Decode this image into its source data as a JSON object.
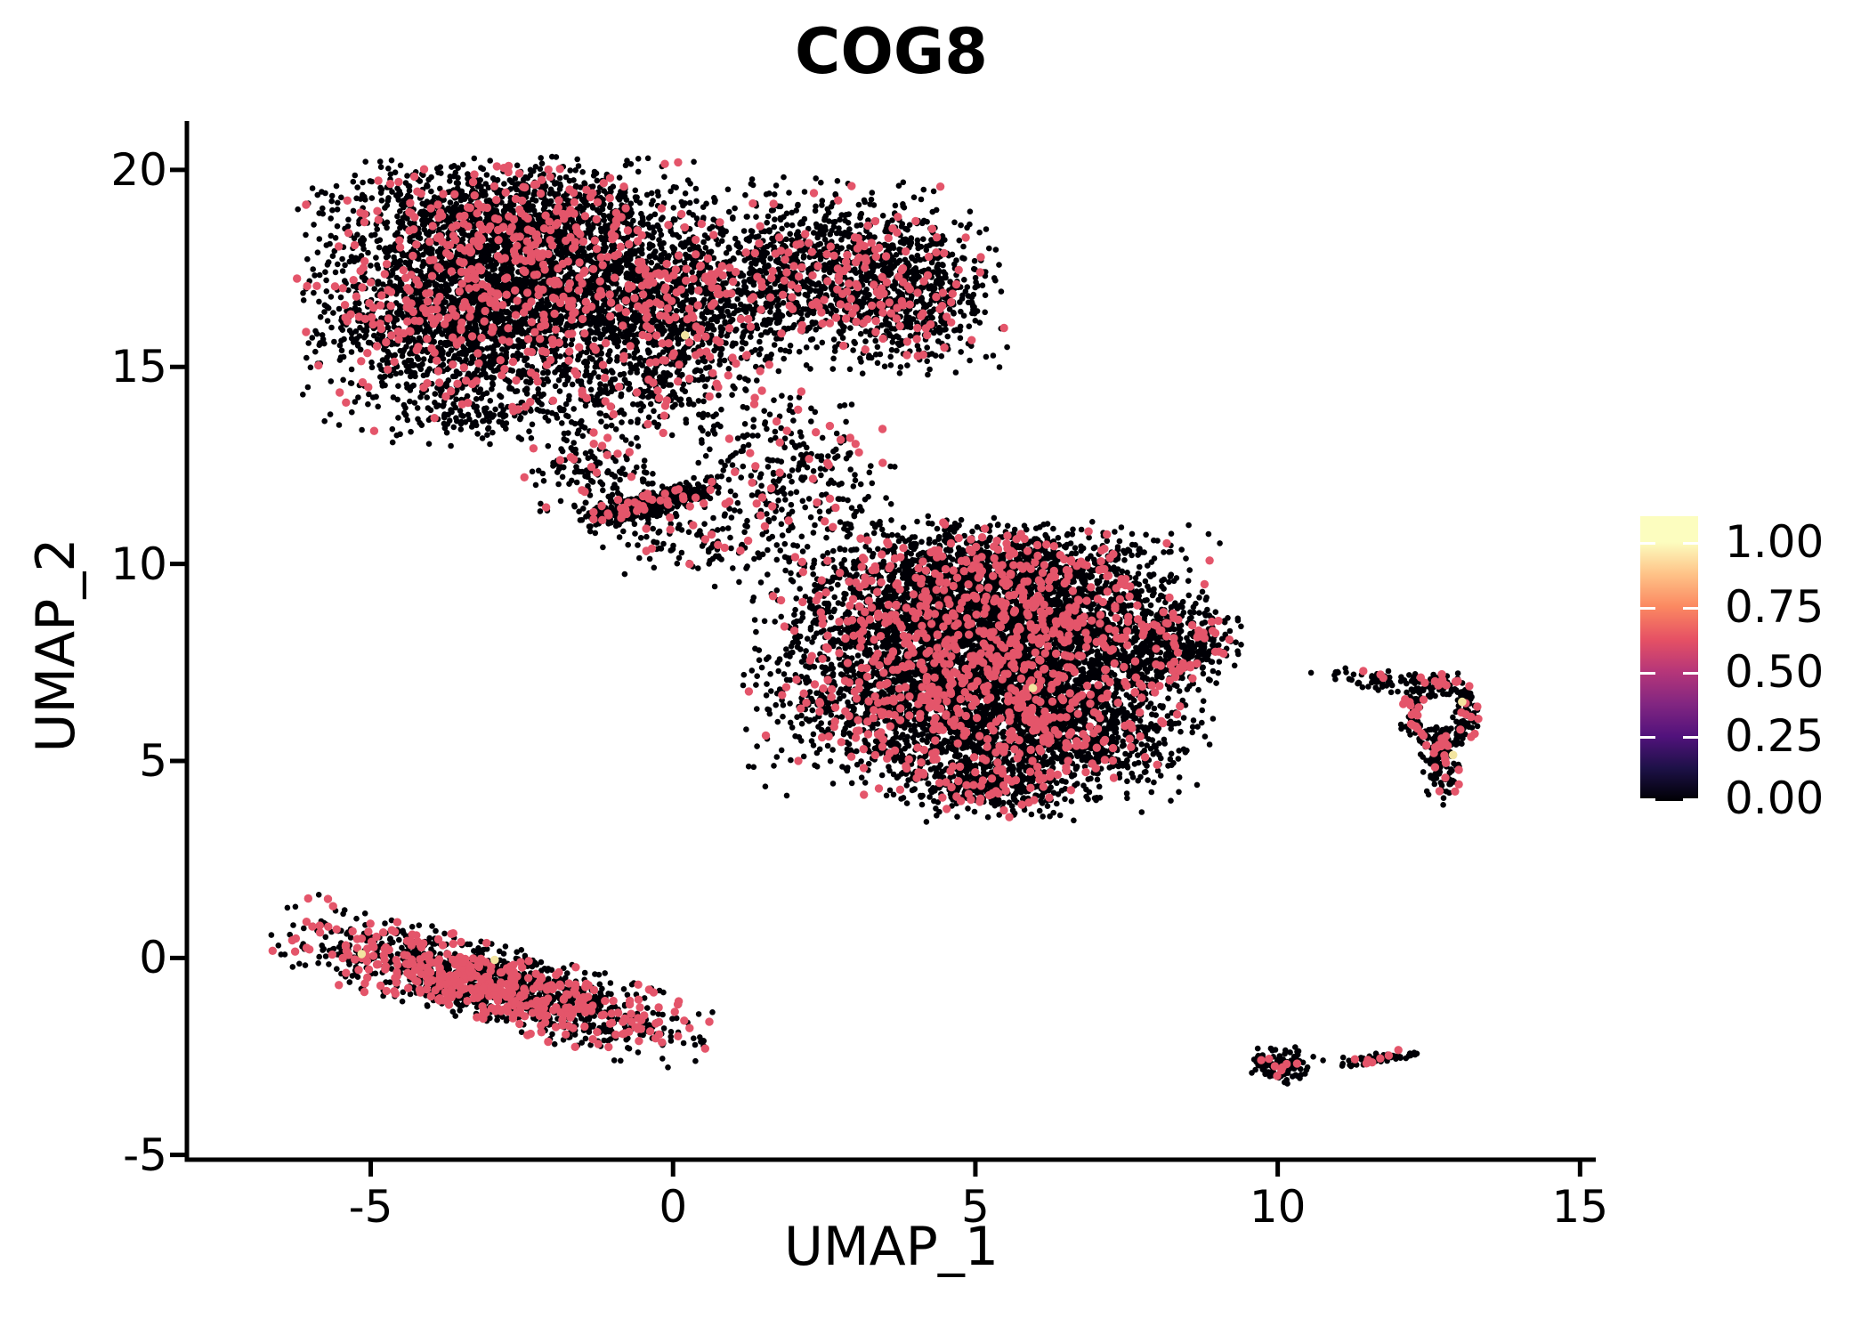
{
  "title": "COG8",
  "chart_data": {
    "type": "scatter",
    "title": "COG8",
    "xlabel": "UMAP_1",
    "ylabel": "UMAP_2",
    "xlim": [
      -8.04,
      15.26
    ],
    "ylim": [
      -5.12,
      21.24
    ],
    "x_ticks": [
      {
        "v": -5,
        "label": "-5"
      },
      {
        "v": 0,
        "label": "0"
      },
      {
        "v": 5,
        "label": "5"
      },
      {
        "v": 10,
        "label": "10"
      },
      {
        "v": 15,
        "label": "15"
      }
    ],
    "y_ticks": [
      {
        "v": 20,
        "label": "20"
      },
      {
        "v": 15,
        "label": "15"
      },
      {
        "v": 10,
        "label": "10"
      },
      {
        "v": 5,
        "label": "5"
      },
      {
        "v": 0,
        "label": "0"
      },
      {
        "v": -5,
        "label": "-5"
      }
    ],
    "grid": false,
    "legend_position": "right",
    "point_colors": {
      "zero_expression": "#000006",
      "mid_expression": "#E4556A",
      "high_expression": "#F3E5A0"
    },
    "point_radius": {
      "zero_expression": 3.3,
      "mid_expression": 4.7,
      "high_expression": 4.8
    },
    "clusters": [
      {
        "name": "top-left-lobe-a",
        "n": 1700,
        "cx": -3.7,
        "cy": 16.4,
        "sx": 1.05,
        "sy": 1.35,
        "red": 0.12
      },
      {
        "name": "top-left-lobe-b",
        "n": 1700,
        "cx": -1.8,
        "cy": 17.4,
        "sx": 1.15,
        "sy": 1.25,
        "red": 0.12
      },
      {
        "name": "top-ridge",
        "n": 700,
        "cx": -3.1,
        "cy": 18.9,
        "sx": 1.25,
        "sy": 0.6,
        "red": 0.12
      },
      {
        "name": "top-center",
        "n": 900,
        "cx": -0.1,
        "cy": 16.2,
        "sx": 0.85,
        "sy": 1.3,
        "red": 0.12
      },
      {
        "name": "top-right-lobe",
        "n": 1200,
        "cx": 2.5,
        "cy": 17.3,
        "sx": 1.15,
        "sy": 1.05,
        "red": 0.12
      },
      {
        "name": "top-right-tip",
        "n": 380,
        "cx": 4.1,
        "cy": 16.7,
        "sx": 0.6,
        "sy": 0.85,
        "red": 0.12
      },
      {
        "name": "top-lower-fringe",
        "n": 260,
        "cx": -2.1,
        "cy": 14.1,
        "sx": 1.7,
        "sy": 0.55,
        "red": 0.1
      },
      {
        "name": "bridge-ridge",
        "n": 420,
        "cx": -0.38,
        "cy": 11.55,
        "sx": 0.6,
        "sy": 0.15,
        "angle": 21,
        "red": 0.1
      },
      {
        "name": "bridge-wisp",
        "n": 300,
        "cx": 1.9,
        "cy": 12.2,
        "sx": 0.8,
        "sy": 1.0,
        "red": 0.12
      },
      {
        "name": "bridge-left",
        "n": 140,
        "cx": -1.3,
        "cy": 12.5,
        "sx": 0.5,
        "sy": 0.55,
        "red": 0.1
      },
      {
        "name": "bridge-lower",
        "n": 120,
        "cx": 0.3,
        "cy": 10.6,
        "sx": 0.7,
        "sy": 0.5,
        "red": 0.1
      },
      {
        "name": "mid-upper-left",
        "n": 1900,
        "cx": 4.3,
        "cy": 8.7,
        "sx": 1.25,
        "sy": 1.05,
        "red": 0.13
      },
      {
        "name": "mid-upper-right",
        "n": 1900,
        "cx": 6.3,
        "cy": 8.3,
        "sx": 1.15,
        "sy": 1.15,
        "red": 0.13
      },
      {
        "name": "mid-lower-left",
        "n": 1700,
        "cx": 4.6,
        "cy": 6.4,
        "sx": 1.45,
        "sy": 0.95,
        "red": 0.13
      },
      {
        "name": "mid-lower-right",
        "n": 800,
        "cx": 6.6,
        "cy": 5.7,
        "sx": 0.95,
        "sy": 0.75,
        "red": 0.13
      },
      {
        "name": "mid-right-tip",
        "n": 330,
        "cx": 8.3,
        "cy": 7.9,
        "sx": 0.55,
        "sy": 0.5,
        "red": 0.13
      },
      {
        "name": "mid-bottom-tip",
        "n": 400,
        "cx": 5.2,
        "cy": 4.5,
        "sx": 0.75,
        "sy": 0.45,
        "red": 0.13
      },
      {
        "name": "mid-top-edge",
        "n": 500,
        "cx": 5.3,
        "cy": 10.0,
        "sx": 1.0,
        "sy": 0.5,
        "red": 0.13
      },
      {
        "name": "right-donut-ring",
        "type": "ring",
        "n": 260,
        "cx": 12.67,
        "cy": 6.24,
        "rx": 0.5,
        "ry": 0.77,
        "srx": 0.11,
        "sry": 0.17,
        "red": 0.15
      },
      {
        "name": "right-donut-tail",
        "n": 110,
        "cx": 12.72,
        "cy": 5.0,
        "sx": 0.14,
        "sy": 0.5,
        "red": 0.15
      },
      {
        "name": "right-donut-wisp",
        "n": 60,
        "cx": 11.6,
        "cy": 7.05,
        "sx": 0.45,
        "sy": 0.13,
        "angle": -10,
        "red": 0.08
      },
      {
        "name": "bottom-left-stripe",
        "n": 1500,
        "cx": -2.95,
        "cy": -0.7,
        "sx": 1.64,
        "sy": 0.42,
        "angle": -23,
        "red": 0.28
      },
      {
        "name": "bottom-small-left",
        "n": 120,
        "cx": 10.05,
        "cy": -2.72,
        "sx": 0.26,
        "sy": 0.2,
        "red": 0.05
      },
      {
        "name": "bottom-small-right",
        "n": 65,
        "cx": 11.6,
        "cy": -2.55,
        "sx": 0.3,
        "sy": 0.07,
        "angle": 11,
        "red": 0.1
      }
    ],
    "single_points": [
      [
        10.75,
        -2.6
      ],
      [
        7.75,
        3.7
      ]
    ],
    "high_expression_points": [
      [
        0.2,
        15.8
      ],
      [
        5.95,
        6.85
      ],
      [
        -5.15,
        0.1
      ],
      [
        -2.95,
        -0.05
      ],
      [
        13.05,
        6.5
      ],
      [
        12.9,
        5.15
      ]
    ],
    "random_seed": 1234
  },
  "legend": {
    "bar_max": 1.1,
    "ticks": [
      {
        "v": 1.0,
        "label": "1.00"
      },
      {
        "v": 0.75,
        "label": "0.75"
      },
      {
        "v": 0.5,
        "label": "0.50"
      },
      {
        "v": 0.25,
        "label": "0.25"
      },
      {
        "v": 0.0,
        "label": "0.00"
      }
    ],
    "gradient_stops": [
      {
        "v": 0.0,
        "color": "#000004"
      },
      {
        "v": 0.125,
        "color": "#1D1147"
      },
      {
        "v": 0.25,
        "color": "#51127C"
      },
      {
        "v": 0.375,
        "color": "#822681"
      },
      {
        "v": 0.5,
        "color": "#B63679"
      },
      {
        "v": 0.625,
        "color": "#E65164"
      },
      {
        "v": 0.75,
        "color": "#FB8861"
      },
      {
        "v": 0.875,
        "color": "#FEC287"
      },
      {
        "v": 1.0,
        "color": "#FCFDBF"
      }
    ],
    "tick_color": "#FFFFFF"
  },
  "axis_color": "#000000",
  "background_color": "#FFFFFF"
}
